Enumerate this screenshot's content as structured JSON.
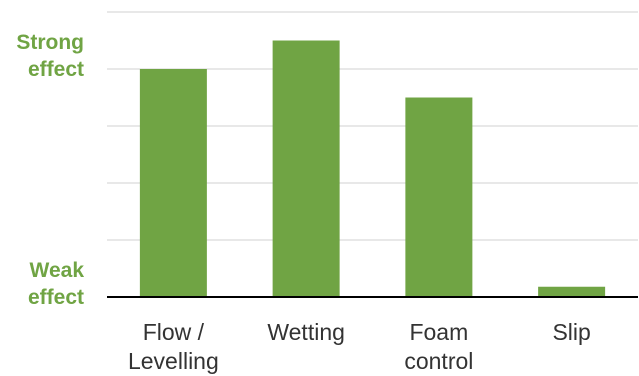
{
  "chart_data": {
    "type": "bar",
    "categories": [
      [
        "Flow /",
        "Levelling"
      ],
      [
        "Wetting"
      ],
      [
        "Foam",
        "control"
      ],
      [
        "Slip"
      ]
    ],
    "values": [
      4.0,
      4.5,
      3.5,
      0.18
    ],
    "ylim": [
      0,
      5
    ],
    "grid": true,
    "y_tick_labels": [
      {
        "value": 4,
        "lines": [
          "Strong",
          "effect"
        ]
      },
      {
        "value": 0,
        "lines": [
          "Weak",
          "effect"
        ]
      }
    ],
    "colors": {
      "bar": "#70a444",
      "label": "#70a444",
      "grid": "#d9d9d9",
      "axis": "#000000",
      "text": "#333333"
    }
  }
}
